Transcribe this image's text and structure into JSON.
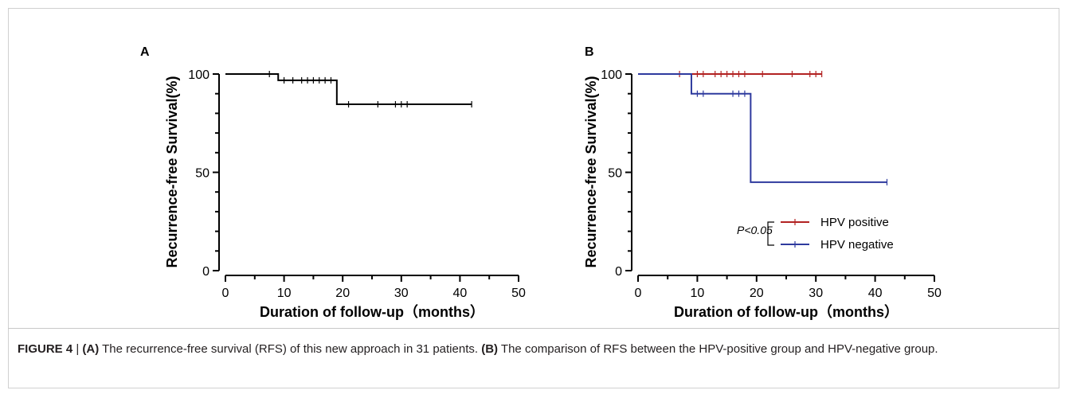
{
  "caption": {
    "figure_label": "FIGURE 4",
    "separator": " | ",
    "a_marker": "(A)",
    "a_text": " The recurrence-free survival (RFS) of this new approach in 31 patients. ",
    "b_marker": "(B)",
    "b_text": " The comparison of RFS between the HPV-positive group and HPV-negative group."
  },
  "chart_data": [
    {
      "panel": "A",
      "type": "line",
      "step": true,
      "xlabel": "Duration of follow-up（months）",
      "ylabel": "Recurrence-free Survival(%)",
      "xlim": [
        0,
        50
      ],
      "ylim": [
        0,
        100
      ],
      "xticks": [
        "0",
        "10",
        "20",
        "30",
        "40",
        "50"
      ],
      "yticks": [
        "0",
        "50",
        "100"
      ],
      "series": [
        {
          "color": "#000000",
          "x": [
            0,
            9,
            9,
            19,
            19,
            42
          ],
          "y": [
            100,
            100,
            96.8,
            96.8,
            84.6,
            84.6
          ],
          "censored": [
            {
              "x": 7.5,
              "y": 100
            },
            {
              "x": 10,
              "y": 96.8
            },
            {
              "x": 11.5,
              "y": 96.8
            },
            {
              "x": 13,
              "y": 96.8
            },
            {
              "x": 14,
              "y": 96.8
            },
            {
              "x": 15,
              "y": 96.8
            },
            {
              "x": 16,
              "y": 96.8
            },
            {
              "x": 17,
              "y": 96.8
            },
            {
              "x": 18,
              "y": 96.8
            },
            {
              "x": 21,
              "y": 84.6
            },
            {
              "x": 26,
              "y": 84.6
            },
            {
              "x": 29,
              "y": 84.6
            },
            {
              "x": 30,
              "y": 84.6
            },
            {
              "x": 31,
              "y": 84.6
            },
            {
              "x": 42,
              "y": 84.6
            }
          ]
        }
      ]
    },
    {
      "panel": "B",
      "type": "line",
      "step": true,
      "xlabel": "Duration of follow-up（months）",
      "ylabel": "Recurrence-free Survival(%)",
      "xlim": [
        0,
        50
      ],
      "ylim": [
        0,
        100
      ],
      "xticks": [
        "0",
        "10",
        "20",
        "30",
        "40",
        "50"
      ],
      "yticks": [
        "0",
        "50",
        "100"
      ],
      "p_value_label": "P<0.05",
      "legend_position": "center-right",
      "series": [
        {
          "name": "HPV positive",
          "color": "#b22222",
          "x": [
            0,
            31
          ],
          "y": [
            100,
            100
          ],
          "censored": [
            {
              "x": 7,
              "y": 100
            },
            {
              "x": 10,
              "y": 100
            },
            {
              "x": 11,
              "y": 100
            },
            {
              "x": 13,
              "y": 100
            },
            {
              "x": 14,
              "y": 100
            },
            {
              "x": 15,
              "y": 100
            },
            {
              "x": 16,
              "y": 100
            },
            {
              "x": 17,
              "y": 100
            },
            {
              "x": 18,
              "y": 100
            },
            {
              "x": 21,
              "y": 100
            },
            {
              "x": 26,
              "y": 100
            },
            {
              "x": 29,
              "y": 100
            },
            {
              "x": 30,
              "y": 100
            },
            {
              "x": 31,
              "y": 100
            }
          ]
        },
        {
          "name": "HPV negative",
          "color": "#2e3a9e",
          "x": [
            0,
            9,
            9,
            19,
            19,
            42
          ],
          "y": [
            100,
            100,
            90,
            90,
            45,
            45
          ],
          "censored": [
            {
              "x": 10,
              "y": 90
            },
            {
              "x": 11,
              "y": 90
            },
            {
              "x": 16,
              "y": 90
            },
            {
              "x": 17,
              "y": 90
            },
            {
              "x": 18,
              "y": 90
            },
            {
              "x": 42,
              "y": 45
            }
          ]
        }
      ]
    }
  ]
}
